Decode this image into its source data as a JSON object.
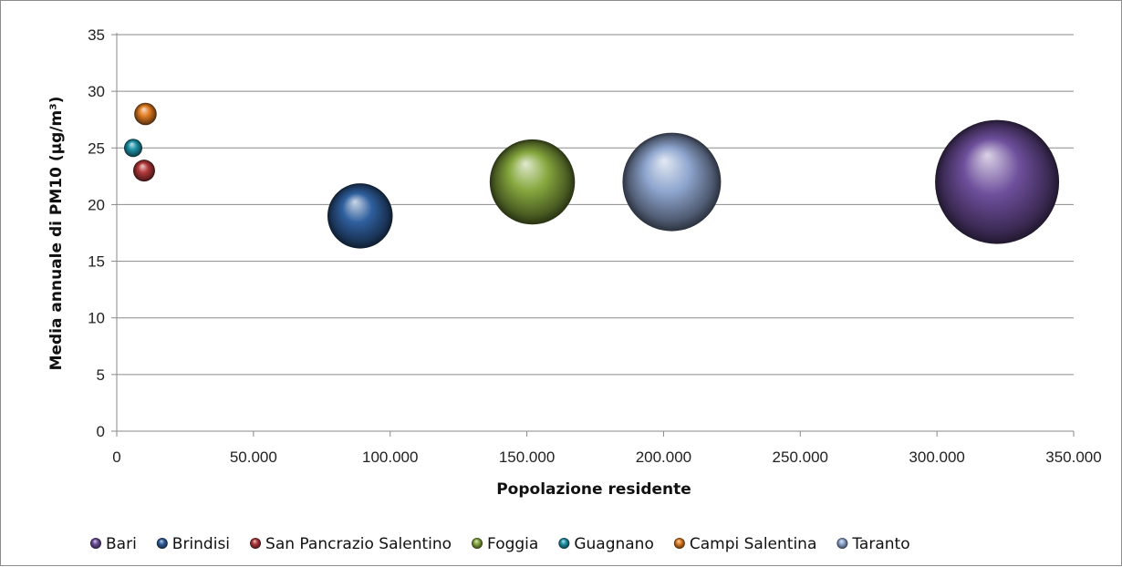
{
  "chart_data": {
    "type": "bubble",
    "title": "",
    "xlabel": "Popolazione residente",
    "ylabel": "Media annuale di PM10 (µg/m³)",
    "xlim": [
      0,
      350000
    ],
    "ylim": [
      0,
      35
    ],
    "x_ticks": [
      {
        "value": 0,
        "label": "0"
      },
      {
        "value": 50000,
        "label": "50.000"
      },
      {
        "value": 100000,
        "label": "100.000"
      },
      {
        "value": 150000,
        "label": "150.000"
      },
      {
        "value": 200000,
        "label": "200.000"
      },
      {
        "value": 250000,
        "label": "250.000"
      },
      {
        "value": 300000,
        "label": "300.000"
      },
      {
        "value": 350000,
        "label": "350.000"
      }
    ],
    "y_ticks": [
      {
        "value": 0,
        "label": "0"
      },
      {
        "value": 5,
        "label": "5"
      },
      {
        "value": 10,
        "label": "10"
      },
      {
        "value": 15,
        "label": "15"
      },
      {
        "value": 20,
        "label": "20"
      },
      {
        "value": 25,
        "label": "25"
      },
      {
        "value": 30,
        "label": "30"
      },
      {
        "value": 35,
        "label": "35"
      }
    ],
    "grid": true,
    "legend_position": "bottom",
    "series": [
      {
        "name": "Bari",
        "x": 322000,
        "y": 22,
        "size": 322000,
        "color": "#6e4f9c"
      },
      {
        "name": "Brindisi",
        "x": 89000,
        "y": 19,
        "size": 89000,
        "color": "#2f5f9e"
      },
      {
        "name": "San Pancrazio Salentino",
        "x": 10000,
        "y": 23,
        "size": 10000,
        "color": "#b2383a"
      },
      {
        "name": "Foggia",
        "x": 152000,
        "y": 22,
        "size": 152000,
        "color": "#86a83e"
      },
      {
        "name": "Guagnano",
        "x": 6000,
        "y": 25,
        "size": 6000,
        "color": "#1f93a8"
      },
      {
        "name": "Campi Salentina",
        "x": 10500,
        "y": 28,
        "size": 10500,
        "color": "#e27c22"
      },
      {
        "name": "Taranto",
        "x": 203000,
        "y": 22,
        "size": 203000,
        "color": "#8fa6cf"
      }
    ]
  }
}
